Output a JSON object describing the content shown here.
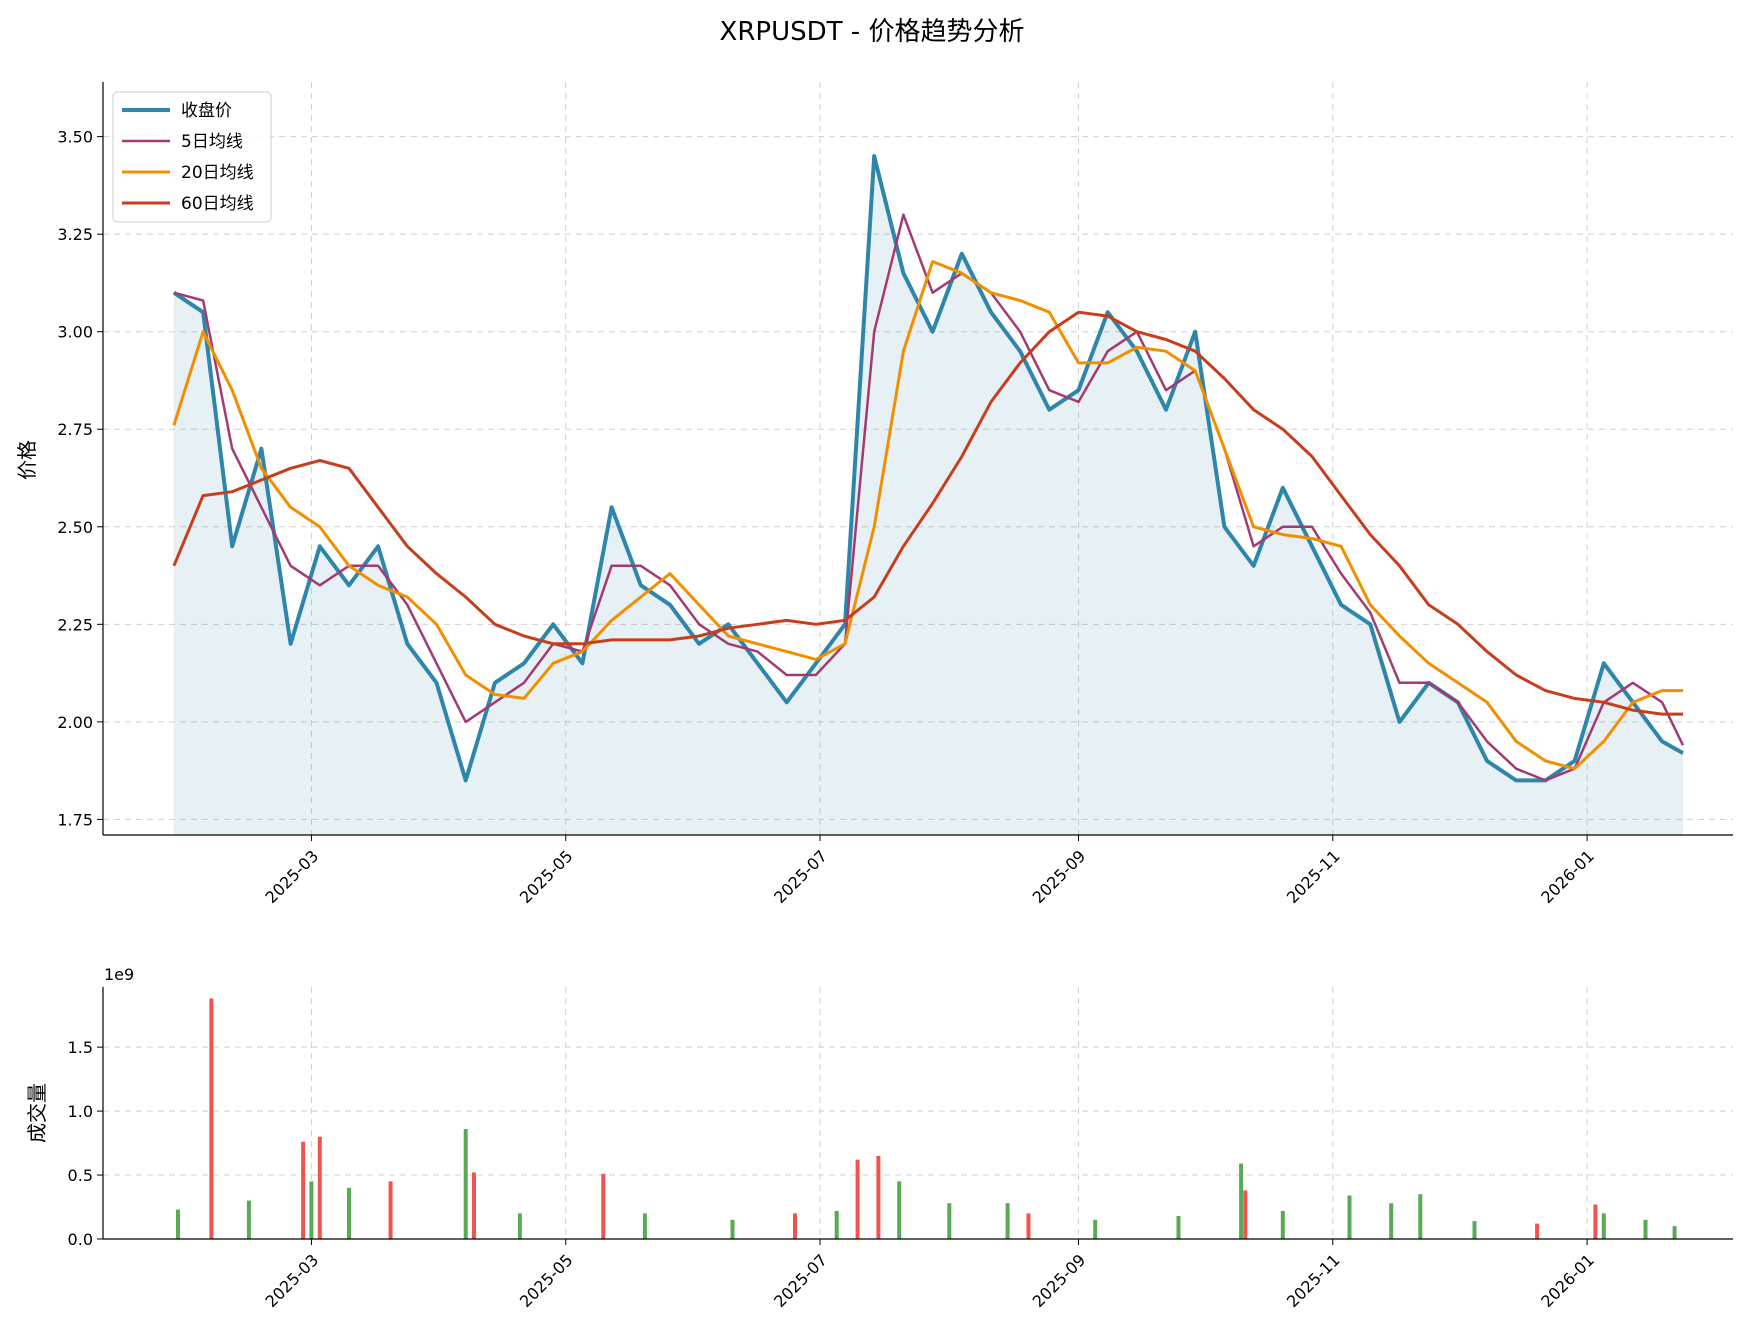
{
  "chart_data": [
    {
      "type": "line",
      "title": "XRPUSDT - 价格趋势分析",
      "ylabel": "价格",
      "xlabel": "",
      "x_ticks": [
        "2025-03",
        "2025-05",
        "2025-07",
        "2025-09",
        "2025-11",
        "2026-01"
      ],
      "y_ticks": [
        "1.75",
        "2.00",
        "2.25",
        "2.50",
        "2.75",
        "3.00",
        "3.25",
        "3.50"
      ],
      "ylim": [
        1.71,
        3.64
      ],
      "xlim": [
        "2025-01-10",
        "2026-02-05"
      ],
      "grid": true,
      "legend_position": "top-left",
      "x": [
        "2025-01-27",
        "2025-02-03",
        "2025-02-10",
        "2025-02-17",
        "2025-02-24",
        "2025-03-03",
        "2025-03-10",
        "2025-03-17",
        "2025-03-24",
        "2025-03-31",
        "2025-04-07",
        "2025-04-14",
        "2025-04-21",
        "2025-04-28",
        "2025-05-05",
        "2025-05-12",
        "2025-05-19",
        "2025-05-26",
        "2025-06-02",
        "2025-06-09",
        "2025-06-16",
        "2025-06-23",
        "2025-06-30",
        "2025-07-07",
        "2025-07-14",
        "2025-07-21",
        "2025-07-28",
        "2025-08-04",
        "2025-08-11",
        "2025-08-18",
        "2025-08-25",
        "2025-09-01",
        "2025-09-08",
        "2025-09-15",
        "2025-09-22",
        "2025-09-29",
        "2025-10-06",
        "2025-10-13",
        "2025-10-20",
        "2025-10-27",
        "2025-11-03",
        "2025-11-10",
        "2025-11-17",
        "2025-11-24",
        "2025-12-01",
        "2025-12-08",
        "2025-12-15",
        "2025-12-22",
        "2025-12-29",
        "2026-01-05",
        "2026-01-12",
        "2026-01-19",
        "2026-01-24"
      ],
      "series": [
        {
          "name": "收盘价",
          "color": "#2E86AB",
          "width": 4,
          "values": [
            3.1,
            3.05,
            2.45,
            2.7,
            2.2,
            2.45,
            2.35,
            2.45,
            2.2,
            2.1,
            1.85,
            2.1,
            2.15,
            2.25,
            2.15,
            2.55,
            2.35,
            2.3,
            2.2,
            2.25,
            2.15,
            2.05,
            2.15,
            2.25,
            3.45,
            3.15,
            3.0,
            3.2,
            3.05,
            2.95,
            2.8,
            2.85,
            3.05,
            2.95,
            2.8,
            3.0,
            2.5,
            2.4,
            2.6,
            2.45,
            2.3,
            2.25,
            2.0,
            2.1,
            2.05,
            1.9,
            1.85,
            1.85,
            1.9,
            2.15,
            2.05,
            1.95,
            1.92
          ]
        },
        {
          "name": "5日均线",
          "color": "#A23B72",
          "width": 2.5,
          "values": [
            3.1,
            3.08,
            2.7,
            2.55,
            2.4,
            2.35,
            2.4,
            2.4,
            2.3,
            2.15,
            2.0,
            2.05,
            2.1,
            2.2,
            2.18,
            2.4,
            2.4,
            2.35,
            2.25,
            2.2,
            2.18,
            2.12,
            2.12,
            2.2,
            3.0,
            3.3,
            3.1,
            3.15,
            3.1,
            3.0,
            2.85,
            2.82,
            2.95,
            3.0,
            2.85,
            2.9,
            2.7,
            2.45,
            2.5,
            2.5,
            2.38,
            2.28,
            2.1,
            2.1,
            2.05,
            1.95,
            1.88,
            1.85,
            1.88,
            2.05,
            2.1,
            2.05,
            1.94
          ]
        },
        {
          "name": "20日均线",
          "color": "#F18F01",
          "width": 3,
          "values": [
            2.76,
            3.0,
            2.85,
            2.65,
            2.55,
            2.5,
            2.4,
            2.35,
            2.32,
            2.25,
            2.12,
            2.07,
            2.06,
            2.15,
            2.18,
            2.26,
            2.32,
            2.38,
            2.3,
            2.22,
            2.2,
            2.18,
            2.16,
            2.2,
            2.5,
            2.95,
            3.18,
            3.15,
            3.1,
            3.08,
            3.05,
            2.92,
            2.92,
            2.96,
            2.95,
            2.9,
            2.7,
            2.5,
            2.48,
            2.47,
            2.45,
            2.3,
            2.22,
            2.15,
            2.1,
            2.05,
            1.95,
            1.9,
            1.88,
            1.95,
            2.05,
            2.08,
            2.08
          ]
        },
        {
          "name": "60日均线",
          "color": "#C73E1D",
          "width": 3,
          "values": [
            2.4,
            2.58,
            2.59,
            2.62,
            2.65,
            2.67,
            2.65,
            2.55,
            2.45,
            2.38,
            2.32,
            2.25,
            2.22,
            2.2,
            2.2,
            2.21,
            2.21,
            2.21,
            2.22,
            2.24,
            2.25,
            2.26,
            2.25,
            2.26,
            2.32,
            2.45,
            2.56,
            2.68,
            2.82,
            2.92,
            3.0,
            3.05,
            3.04,
            3.0,
            2.98,
            2.95,
            2.88,
            2.8,
            2.75,
            2.68,
            2.58,
            2.48,
            2.4,
            2.3,
            2.25,
            2.18,
            2.12,
            2.08,
            2.06,
            2.05,
            2.03,
            2.02,
            2.02
          ]
        }
      ]
    },
    {
      "type": "bar",
      "ylabel": "成交量",
      "xlabel": "",
      "offset_label": "1e9",
      "y_ticks": [
        "0.0",
        "0.5",
        "1.0",
        "1.5"
      ],
      "x_ticks": [
        "2025-03",
        "2025-05",
        "2025-07",
        "2025-09",
        "2025-11",
        "2026-01"
      ],
      "ylim": [
        0,
        1.97
      ],
      "grid": true,
      "up_color": "#5AAA55",
      "down_color": "#F0544F",
      "x": [
        "2025-01-28",
        "2025-02-05",
        "2025-02-14",
        "2025-02-27",
        "2025-03-01",
        "2025-03-03",
        "2025-03-10",
        "2025-03-20",
        "2025-04-07",
        "2025-04-09",
        "2025-04-20",
        "2025-05-10",
        "2025-05-20",
        "2025-06-10",
        "2025-06-25",
        "2025-07-05",
        "2025-07-10",
        "2025-07-15",
        "2025-07-20",
        "2025-08-01",
        "2025-08-15",
        "2025-08-20",
        "2025-09-05",
        "2025-09-25",
        "2025-10-10",
        "2025-10-11",
        "2025-10-20",
        "2025-11-05",
        "2025-11-15",
        "2025-11-22",
        "2025-12-05",
        "2025-12-20",
        "2026-01-03",
        "2026-01-05",
        "2026-01-15",
        "2026-01-22"
      ],
      "values": [
        0.23,
        1.88,
        0.3,
        0.76,
        0.45,
        0.8,
        0.4,
        0.45,
        0.86,
        0.52,
        0.2,
        0.51,
        0.2,
        0.15,
        0.2,
        0.22,
        0.62,
        0.65,
        0.45,
        0.28,
        0.28,
        0.2,
        0.15,
        0.18,
        0.59,
        0.38,
        0.22,
        0.34,
        0.28,
        0.35,
        0.14,
        0.12,
        0.27,
        0.2,
        0.15,
        0.1
      ],
      "colors": [
        "up",
        "down",
        "up",
        "down",
        "up",
        "down",
        "up",
        "down",
        "up",
        "down",
        "up",
        "down",
        "up",
        "up",
        "down",
        "up",
        "down",
        "down",
        "up",
        "up",
        "up",
        "down",
        "up",
        "up",
        "up",
        "down",
        "up",
        "up",
        "up",
        "up",
        "up",
        "down",
        "down",
        "up",
        "up",
        "up"
      ]
    }
  ]
}
